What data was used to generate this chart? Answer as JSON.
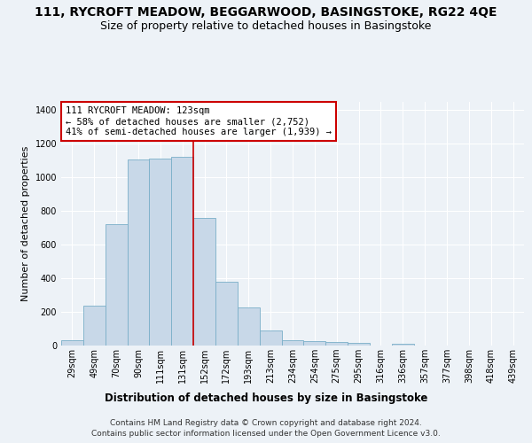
{
  "title_line1": "111, RYCROFT MEADOW, BEGGARWOOD, BASINGSTOKE, RG22 4QE",
  "title_line2": "Size of property relative to detached houses in Basingstoke",
  "xlabel": "Distribution of detached houses by size in Basingstoke",
  "ylabel": "Number of detached properties",
  "bar_labels": [
    "29sqm",
    "49sqm",
    "70sqm",
    "90sqm",
    "111sqm",
    "131sqm",
    "152sqm",
    "172sqm",
    "193sqm",
    "213sqm",
    "234sqm",
    "254sqm",
    "275sqm",
    "295sqm",
    "316sqm",
    "336sqm",
    "357sqm",
    "377sqm",
    "398sqm",
    "418sqm",
    "439sqm"
  ],
  "bar_values": [
    30,
    235,
    720,
    1105,
    1115,
    1125,
    760,
    380,
    225,
    90,
    30,
    25,
    22,
    15,
    0,
    10,
    0,
    0,
    0,
    0,
    0
  ],
  "bar_color": "#c8d8e8",
  "bar_edgecolor": "#7aafc8",
  "vline_x": 5.5,
  "vline_color": "#cc0000",
  "annotation_text": "111 RYCROFT MEADOW: 123sqm\n← 58% of detached houses are smaller (2,752)\n41% of semi-detached houses are larger (1,939) →",
  "annotation_box_color": "#cc0000",
  "ylim": [
    0,
    1450
  ],
  "yticks": [
    0,
    200,
    400,
    600,
    800,
    1000,
    1200,
    1400
  ],
  "footer_line1": "Contains HM Land Registry data © Crown copyright and database right 2024.",
  "footer_line2": "Contains public sector information licensed under the Open Government Licence v3.0.",
  "bg_color": "#edf2f7",
  "plot_bg_color": "#edf2f7",
  "grid_color": "#ffffff",
  "title_fontsize": 10,
  "subtitle_fontsize": 9,
  "ylabel_fontsize": 8,
  "xlabel_fontsize": 8.5,
  "tick_fontsize": 7,
  "footer_fontsize": 6.5,
  "ann_fontsize": 7.5
}
